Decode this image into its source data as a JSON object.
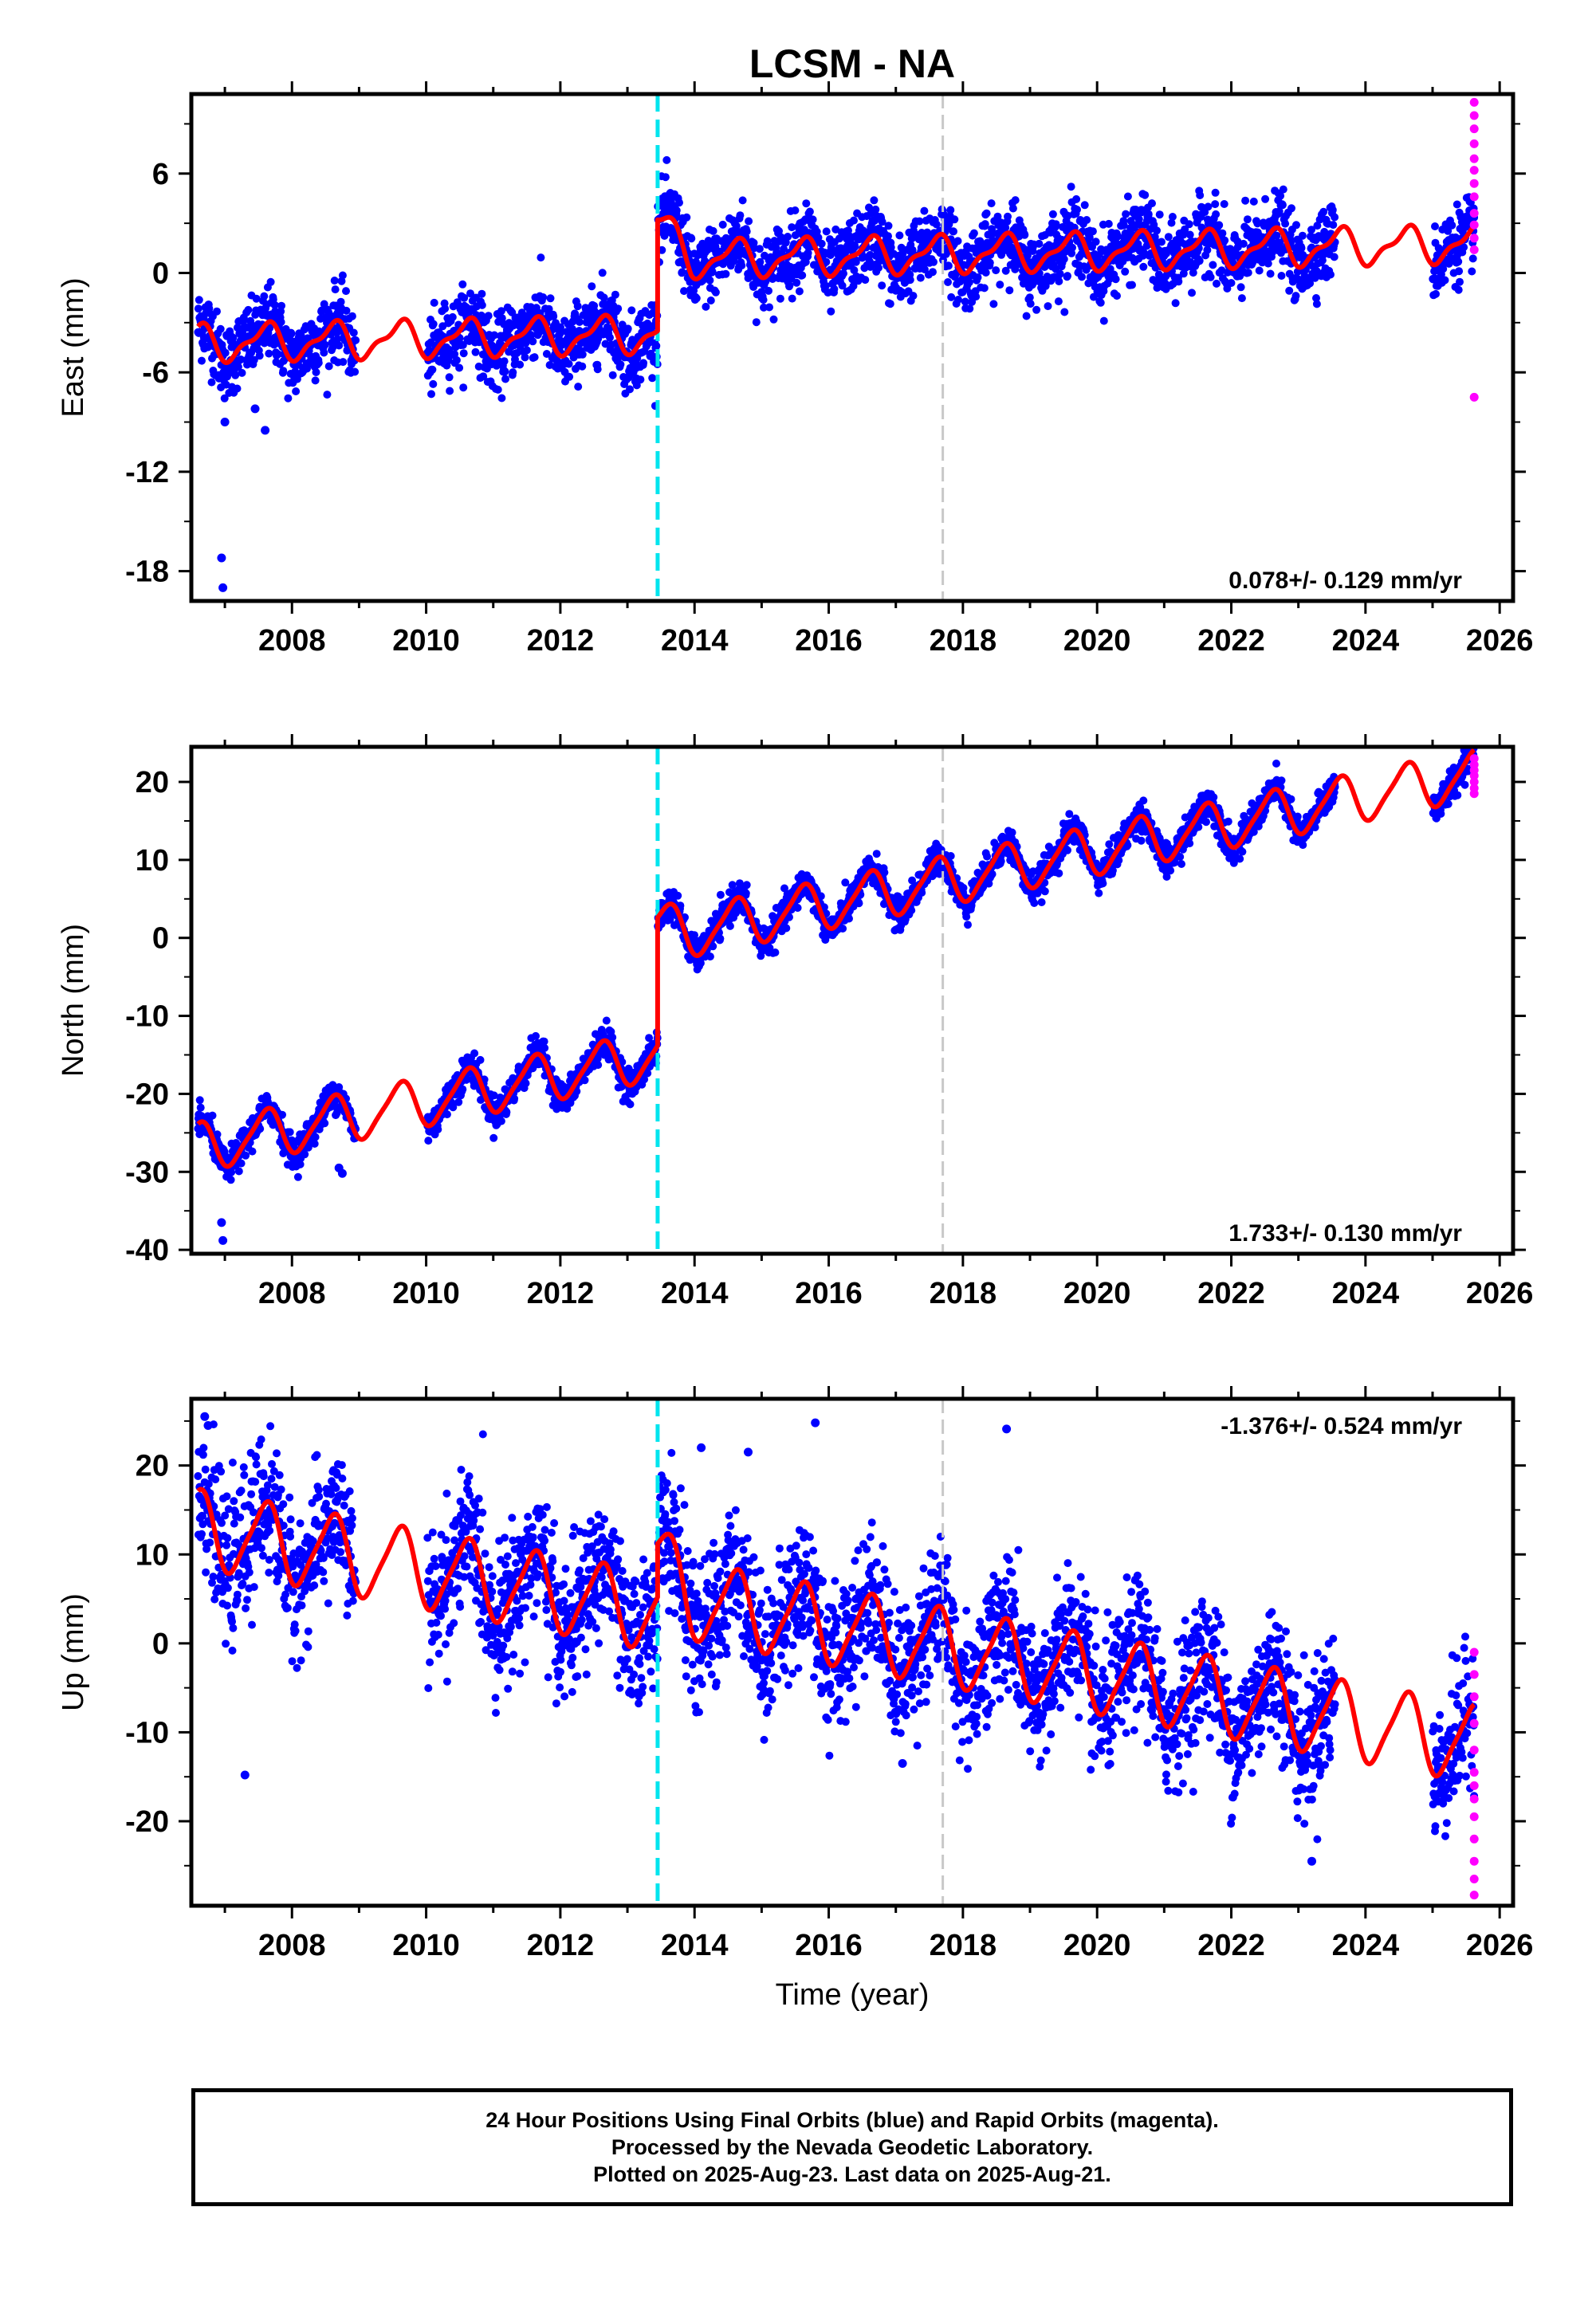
{
  "title": "LCSM - NA",
  "xlabel": "Time (year)",
  "colors": {
    "final": "#0000ff",
    "rapid": "#ff00ff",
    "model": "#ff0000",
    "offset_cyan": "#00e5ee",
    "offset_gray": "#c8c8c8"
  },
  "x_ticks": [
    "2008",
    "2010",
    "2012",
    "2014",
    "2016",
    "2018",
    "2020",
    "2022",
    "2024",
    "2026"
  ],
  "caption": [
    "24 Hour Positions Using Final Orbits (blue) and Rapid Orbits (magenta).",
    "Processed by the Nevada Geodetic Laboratory.",
    "Plotted on 2025-Aug-23. Last data on 2025-Aug-21."
  ],
  "chart_data": [
    {
      "type": "scatter",
      "name": "East",
      "ylabel": "East (mm)",
      "xlim": [
        2006.5,
        2026.2
      ],
      "ylim": [
        -19.8,
        10.8
      ],
      "y_ticks": [
        -18,
        -12,
        -6,
        0,
        6
      ],
      "rate_label": "0.078+/- 0.129 mm/yr",
      "offsets": {
        "equipment": 2013.45,
        "earthquake": 2017.7
      },
      "model": {
        "pre_level": -3.7,
        "post_level": 0.8,
        "trend": 0.078,
        "annual_amp": 1.0,
        "semiannual_amp": 0.4,
        "step_spike": 2.2
      },
      "scatter_sd": 1.1,
      "outliers": [
        [
          2006.95,
          -17.2
        ],
        [
          2006.97,
          -19.0
        ],
        [
          2007.0,
          -9.0
        ],
        [
          2007.6,
          -9.5
        ],
        [
          2007.45,
          -8.2
        ]
      ],
      "rapid_values": [
        10.3,
        9.5,
        8.7,
        7.8,
        6.9,
        6.2,
        5.4,
        4.6,
        3.6,
        2.9,
        2.1,
        1.4,
        -7.5
      ]
    },
    {
      "type": "scatter",
      "name": "North",
      "ylabel": "North (mm)",
      "xlim": [
        2006.5,
        2026.2
      ],
      "ylim": [
        -40.5,
        24.5
      ],
      "y_ticks": [
        -40,
        -30,
        -20,
        -10,
        0,
        10,
        20
      ],
      "rate_label": "1.733+/- 0.130 mm/yr",
      "offsets": {
        "equipment": 2013.45,
        "earthquake": 2017.7
      },
      "model": {
        "pre_level": -15.0,
        "post_level": -0.1,
        "trend": 1.733,
        "annual_amp": 3.0,
        "semiannual_amp": 0.6,
        "step_spike": 1.5
      },
      "scatter_sd": 1.0,
      "outliers": [
        [
          2006.95,
          -36.5
        ],
        [
          2006.97,
          -38.8
        ],
        [
          2008.7,
          -29.5
        ],
        [
          2008.75,
          -30.2
        ]
      ],
      "rapid_values": [
        23.0,
        22.2,
        21.5,
        20.8,
        20.0,
        19.2,
        18.5
      ]
    },
    {
      "type": "scatter",
      "name": "Up",
      "ylabel": "Up (mm)",
      "xlim": [
        2006.5,
        2026.2
      ],
      "ylim": [
        -29.5,
        27.5
      ],
      "y_ticks": [
        -20,
        -10,
        0,
        10,
        20
      ],
      "rate_label": "-1.376+/- 0.524 mm/yr",
      "offsets": {
        "equipment": 2013.45,
        "earthquake": 2017.7
      },
      "model": {
        "pre_level": 3.5,
        "post_level": 5.5,
        "trend": -1.376,
        "annual_amp": 4.2,
        "semiannual_amp": 0.8,
        "step_spike": 4.0
      },
      "scatter_sd": 3.8,
      "outliers": [
        [
          2006.7,
          25.5
        ],
        [
          2006.75,
          24.5
        ],
        [
          2015.8,
          24.8
        ],
        [
          2018.65,
          24.1
        ],
        [
          2014.1,
          22.0
        ],
        [
          2014.8,
          21.5
        ],
        [
          2007.3,
          -14.8
        ],
        [
          2017.1,
          -13.5
        ],
        [
          2023.2,
          -24.5
        ]
      ],
      "rapid_values": [
        -1.0,
        -3.5,
        -6.0,
        -9.0,
        -12.0,
        -14.5,
        -16.0,
        -17.5,
        -19.5,
        -22.0,
        -24.5,
        -26.5,
        -28.3
      ]
    }
  ]
}
